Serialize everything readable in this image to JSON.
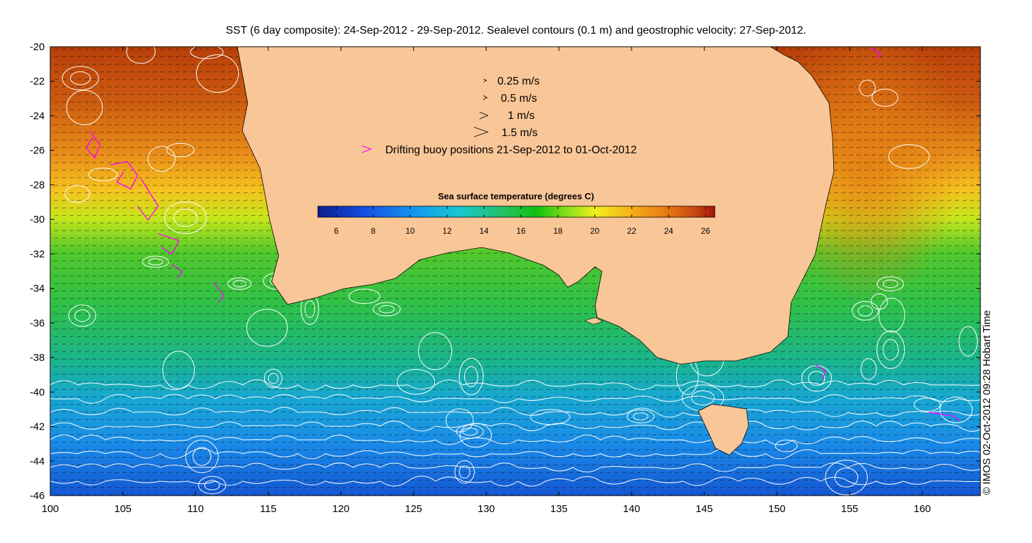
{
  "title": "SST (6 day composite): 24-Sep-2012 - 29-Sep-2012. Sealevel contours (0.1 m) and geostrophic velocity: 27-Sep-2012.",
  "credit": "© IMOS 02-Oct-2012 09:28 Hobart Time",
  "axes": {
    "lon_range": [
      100,
      164
    ],
    "lat_range": [
      -46,
      -20
    ],
    "x_ticks": [
      "100",
      "105",
      "110",
      "115",
      "120",
      "125",
      "130",
      "135",
      "140",
      "145",
      "150",
      "155",
      "160"
    ],
    "y_ticks": [
      "-20",
      "-22",
      "-24",
      "-26",
      "-28",
      "-30",
      "-32",
      "-34",
      "-36",
      "-38",
      "-40",
      "-42",
      "-44",
      "-46"
    ]
  },
  "velocity_legend": [
    {
      "label": "0.25 m/s",
      "speed": 0.25
    },
    {
      "label": "0.5 m/s",
      "speed": 0.5
    },
    {
      "label": "1 m/s",
      "speed": 1
    },
    {
      "label": "1.5 m/s",
      "speed": 1.5
    }
  ],
  "buoy_legend": {
    "label": "Drifting buoy positions 21-Sep-2012 to 01-Oct-2012",
    "color": "#ff00ff"
  },
  "colorbar": {
    "title": "Sea surface temperature (degrees C)",
    "range": [
      5,
      26.5
    ],
    "ticks": [
      "6",
      "8",
      "10",
      "12",
      "14",
      "16",
      "18",
      "20",
      "22",
      "24",
      "26"
    ]
  },
  "colors": {
    "land": "#f9c697",
    "contour": "#ffffff",
    "vector": "#000000",
    "buoy": "#ff00ff"
  }
}
